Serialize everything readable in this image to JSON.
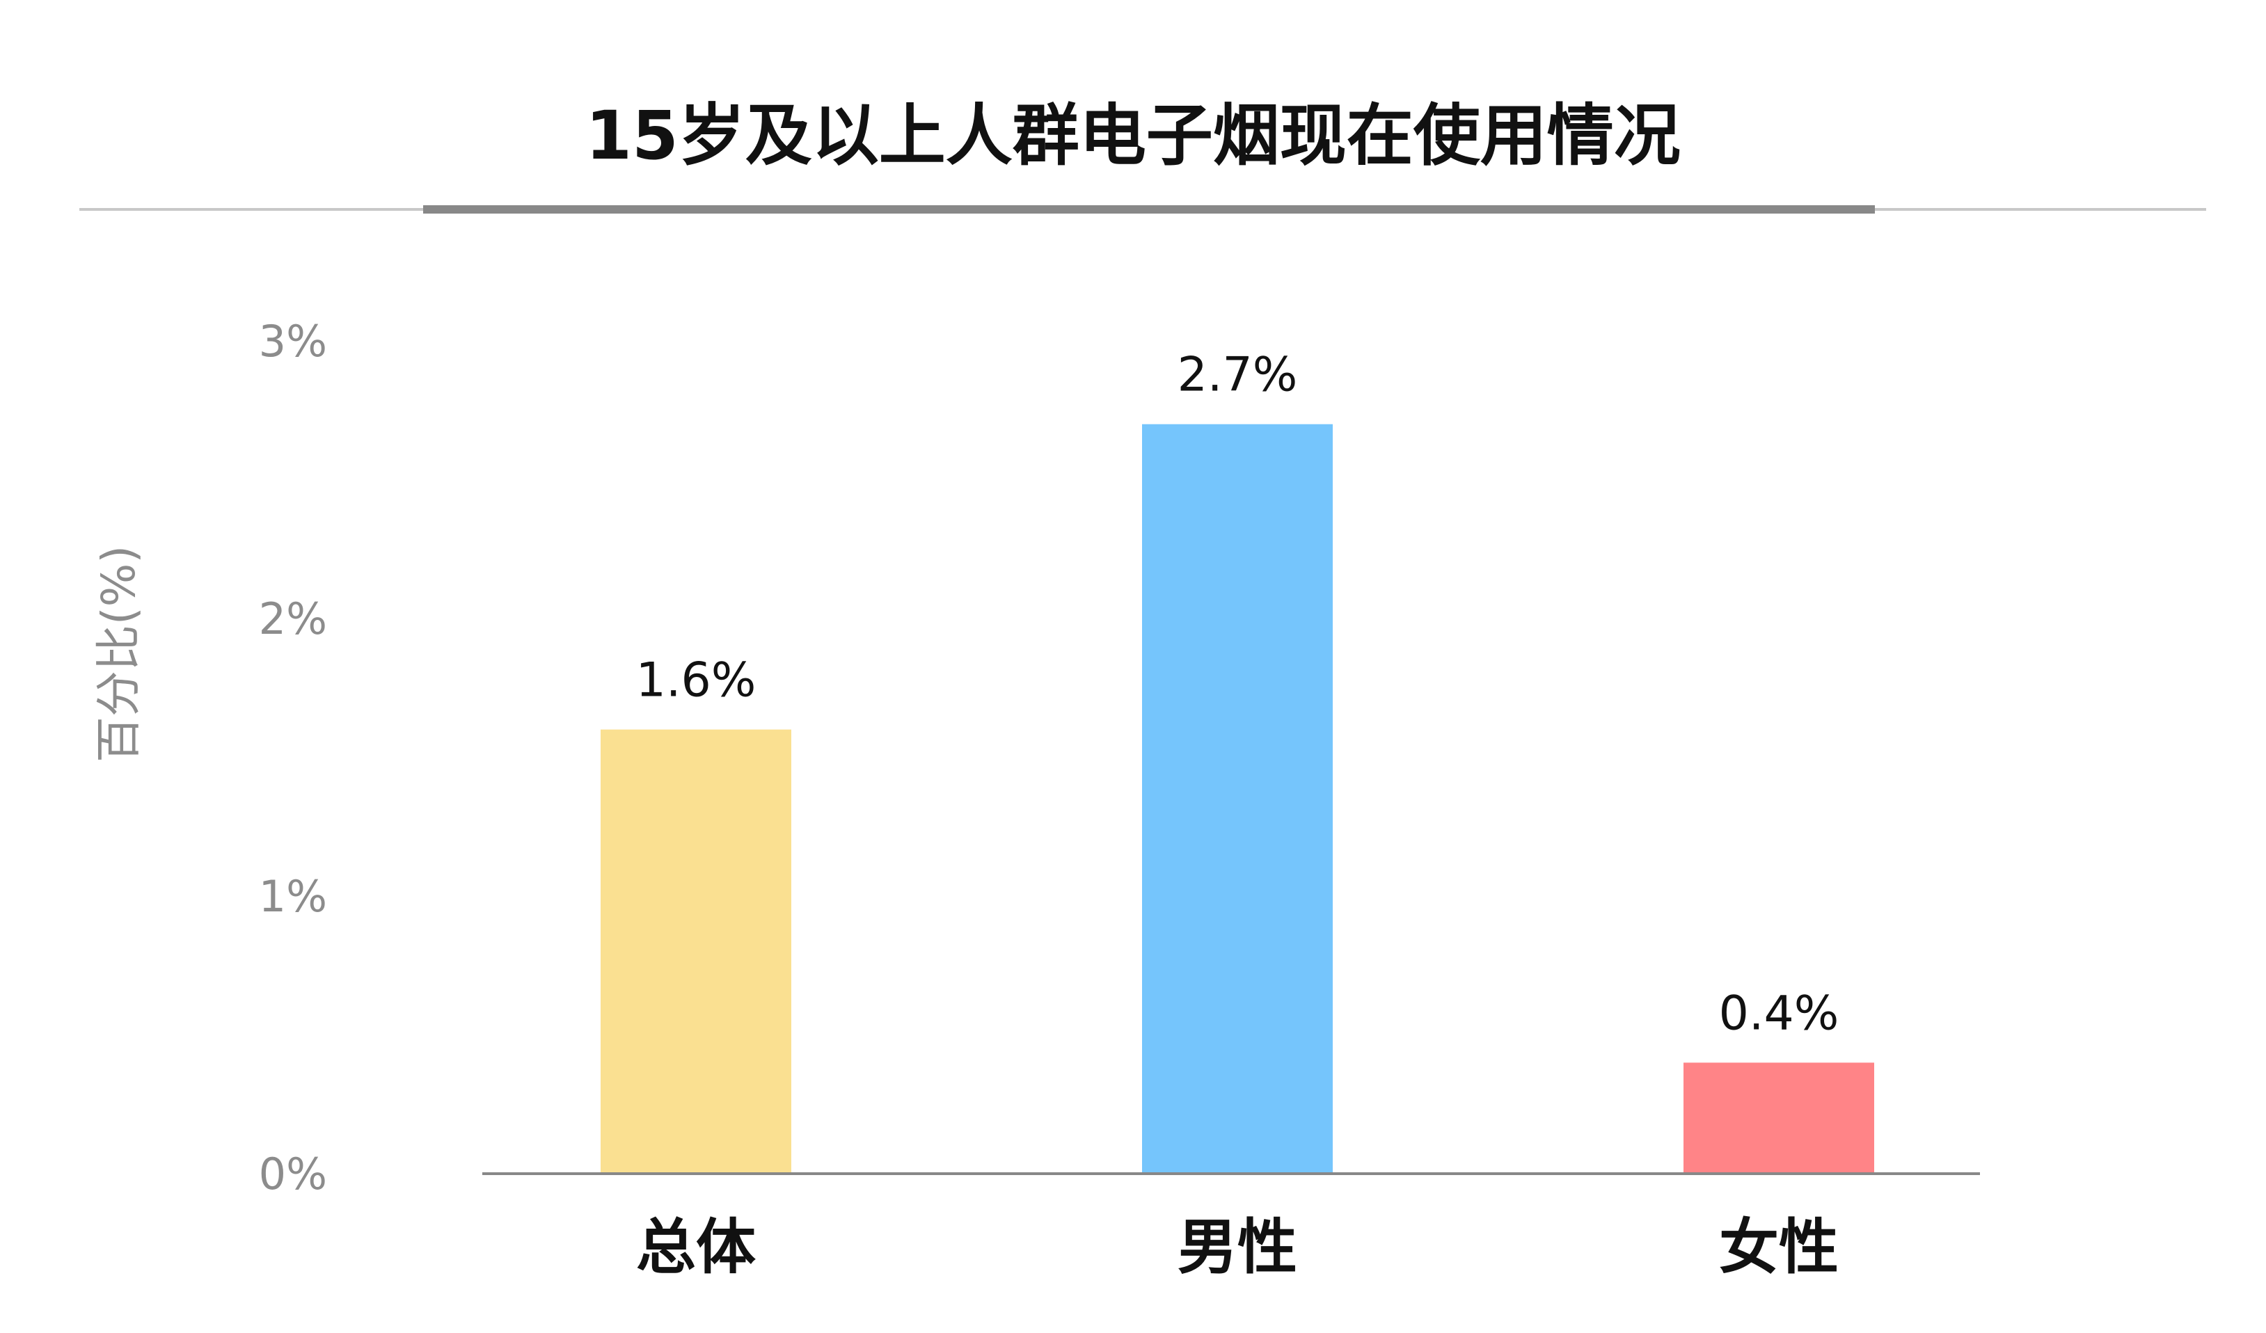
{
  "chart_data": {
    "type": "bar",
    "title": "15岁及以上人群电子烟现在使用情况",
    "ylabel": "百分比(%)",
    "xlabel": "",
    "categories": [
      "总体",
      "男性",
      "女性"
    ],
    "values": [
      1.6,
      2.7,
      0.4
    ],
    "data_labels": [
      "1.6%",
      "2.7%",
      "0.4%"
    ],
    "bar_colors": [
      "#FAE091",
      "#75C5FC",
      "#FF8487"
    ],
    "ylim": [
      0,
      3
    ],
    "yticks": [
      0,
      1,
      2,
      3
    ],
    "ytick_labels": [
      "0%",
      "1%",
      "2%",
      "3%"
    ],
    "grid": false,
    "legend": "none"
  },
  "colors": {
    "title": "#111111",
    "axis_text": "#8C8C8C",
    "label_text": "#111111",
    "rule_light": "#C8C8C8",
    "rule_dark": "#888888",
    "baseline": "#888888"
  }
}
